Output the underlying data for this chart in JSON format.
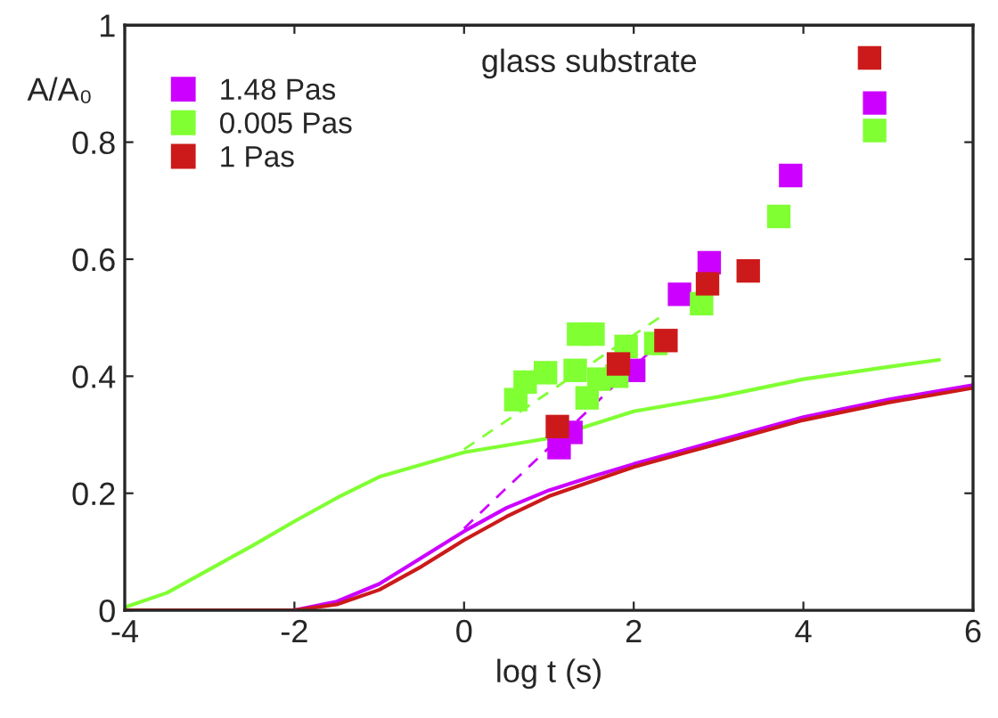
{
  "chart_data": {
    "type": "scatter",
    "xlabel": "log t (s)",
    "ylabel": "A/A₀",
    "annotations": [
      "glass substrate"
    ],
    "xlim": [
      -4,
      6
    ],
    "ylim": [
      0,
      1
    ],
    "xticks": [
      -4,
      -2,
      0,
      2,
      4,
      6
    ],
    "yticks": [
      0,
      0.2,
      0.4,
      0.6,
      0.8,
      1
    ],
    "grid": false,
    "legend": "top left",
    "series": [
      {
        "name": "1.48 Pas",
        "marker": "square",
        "color": "#cc00ff",
        "x": [
          1.12,
          1.26,
          2.0,
          2.54,
          2.75,
          2.89,
          3.85,
          4.84
        ],
        "values": [
          0.278,
          0.304,
          0.41,
          0.54,
          null,
          0.594,
          0.743,
          0.867
        ]
      },
      {
        "name": "0.005 Pas",
        "marker": "square",
        "color": "#80ff33",
        "x": [
          0.61,
          0.72,
          0.96,
          1.35,
          1.52,
          1.31,
          1.45,
          1.59,
          1.8,
          1.91,
          2.26,
          2.8,
          3.71,
          4.84
        ],
        "values": [
          0.36,
          0.39,
          0.406,
          0.472,
          0.472,
          0.41,
          0.363,
          0.395,
          0.4,
          0.451,
          0.456,
          0.524,
          0.673,
          0.82
        ]
      },
      {
        "name": "1 Pas",
        "marker": "square",
        "color": "#cc1a1a",
        "x": [
          1.1,
          1.82,
          2.38,
          2.87,
          3.35,
          4.78
        ],
        "values": [
          0.314,
          0.421,
          0.461,
          0.558,
          0.58,
          0.944
        ]
      },
      {
        "type": "line",
        "color": "#80ff33",
        "x": [
          -4,
          -3.5,
          -3,
          -2.5,
          -2,
          -1.5,
          -1,
          0,
          1,
          2,
          3,
          4,
          5,
          5.6
        ],
        "values": [
          0.005,
          0.03,
          0.07,
          0.11,
          0.152,
          0.192,
          0.228,
          0.27,
          0.294,
          0.34,
          0.365,
          0.395,
          0.416,
          0.428
        ]
      },
      {
        "type": "line",
        "color": "#cc00ff",
        "x": [
          -4,
          -2,
          -1.5,
          -1,
          -0.5,
          0,
          0.5,
          1,
          1.5,
          2,
          3,
          4,
          5,
          6
        ],
        "values": [
          0,
          0,
          0.015,
          0.045,
          0.09,
          0.135,
          0.175,
          0.205,
          0.228,
          0.25,
          0.29,
          0.33,
          0.36,
          0.385
        ]
      },
      {
        "type": "line",
        "color": "#cc1a1a",
        "x": [
          -4,
          -2,
          -1.5,
          -1,
          -0.5,
          0,
          0.5,
          1,
          1.5,
          2,
          3,
          4,
          5,
          6
        ],
        "values": [
          0,
          0,
          0.01,
          0.035,
          0.075,
          0.12,
          0.16,
          0.195,
          0.22,
          0.245,
          0.285,
          0.325,
          0.355,
          0.38
        ]
      },
      {
        "type": "line",
        "line_style": "dashed",
        "color": "#80ff33",
        "x": [
          0,
          2.3
        ],
        "values": [
          0.275,
          0.5
        ]
      },
      {
        "type": "line",
        "line_style": "dashed",
        "color": "#cc00ff",
        "x": [
          0,
          2.25
        ],
        "values": [
          0.14,
          0.45
        ]
      }
    ]
  }
}
